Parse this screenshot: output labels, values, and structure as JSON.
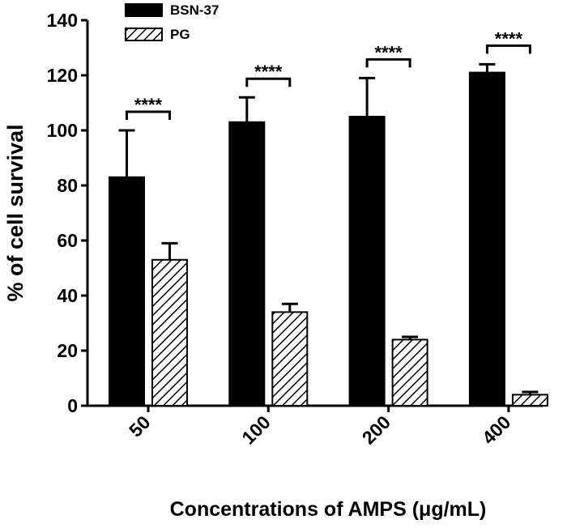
{
  "chart_data": {
    "type": "bar",
    "x_label": "Concentrations of AMPS  (μg/mL)",
    "y_label": "% of cell survival",
    "categories": [
      "50",
      "100",
      "200",
      "400"
    ],
    "series": [
      {
        "name": "BSN-37",
        "color": "#000000",
        "fill": "solid",
        "values": [
          83,
          103,
          105,
          121
        ],
        "errors": [
          17,
          9,
          14,
          3
        ]
      },
      {
        "name": "PG",
        "color": "#000000",
        "fill": "hatch",
        "values": [
          53,
          34,
          24,
          4
        ],
        "errors": [
          6,
          3,
          1,
          1
        ]
      }
    ],
    "significance": [
      "****",
      "****",
      "****",
      "****"
    ],
    "ylim": [
      0,
      140
    ],
    "yticks": [
      0,
      20,
      40,
      60,
      80,
      100,
      120,
      140
    ]
  }
}
